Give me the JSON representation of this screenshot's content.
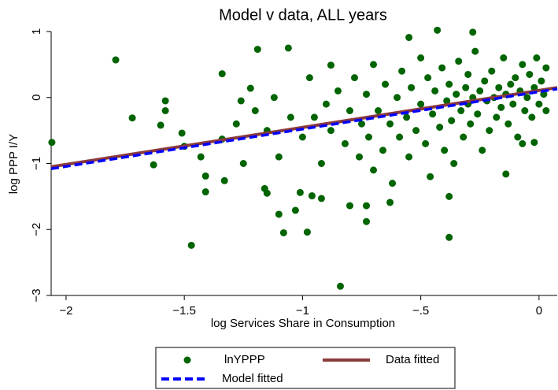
{
  "chart_data": {
    "type": "scatter",
    "title": "Model v data, ALL years",
    "x_label": "log Services Share in Consumption",
    "y_label": "log PPP I/Y",
    "xlim": [
      -2.063,
      0.077
    ],
    "ylim": [
      -3,
      1
    ],
    "xticks": [
      {
        "value": -2,
        "label": "−2"
      },
      {
        "value": -1.5,
        "label": "−1.5"
      },
      {
        "value": -1,
        "label": "−1"
      },
      {
        "value": -0.5,
        "label": "−.5"
      },
      0
    ],
    "yticks": [
      {
        "value": -3,
        "label": "−3"
      },
      {
        "value": -2,
        "label": "−2"
      },
      {
        "value": -1,
        "label": "−1"
      },
      0,
      1
    ],
    "series": [
      {
        "name": "lnYPPP",
        "type": "scatter",
        "color": "#006400",
        "x": [
          -2.06,
          -1.79,
          -1.72,
          -1.6,
          -1.58,
          -1.58,
          -1.63,
          -1.51,
          -1.5,
          -1.47,
          -1.43,
          -1.41,
          -1.41,
          -1.34,
          -1.33,
          -1.34,
          -1.19,
          -1.26,
          -1.22,
          -1.16,
          -1.15,
          -1.1,
          -1.08,
          -1.06,
          -1.03,
          -1.01,
          -0.98,
          -0.96,
          -0.92,
          -0.84,
          -0.8,
          -0.73,
          -0.73,
          -0.63,
          -0.55,
          -0.43,
          -0.28,
          -0.38,
          -0.38,
          -0.14,
          -0.02,
          -0.07,
          -0.88,
          -0.95,
          -0.9,
          -0.88,
          -0.85,
          -0.82,
          -0.8,
          -0.78,
          -0.76,
          -0.75,
          -0.73,
          -0.72,
          -0.7,
          -0.7,
          -0.68,
          -0.66,
          -0.65,
          -0.63,
          -0.62,
          -0.6,
          -0.59,
          -0.58,
          -0.56,
          -0.55,
          -0.54,
          -0.52,
          -0.5,
          -0.5,
          -0.48,
          -0.47,
          -0.46,
          -0.45,
          -0.44,
          -0.42,
          -0.41,
          -0.4,
          -0.39,
          -0.38,
          -0.37,
          -0.36,
          -0.35,
          -0.34,
          -0.33,
          -0.32,
          -0.31,
          -0.3,
          -0.3,
          -0.29,
          -0.28,
          -0.27,
          -0.26,
          -0.25,
          -0.24,
          -0.23,
          -0.22,
          -0.21,
          -0.2,
          -0.19,
          -0.18,
          -0.17,
          -0.16,
          -0.15,
          -0.14,
          -0.13,
          -0.12,
          -0.11,
          -0.1,
          -0.09,
          -0.08,
          -0.07,
          -0.06,
          -0.05,
          -0.04,
          -0.03,
          -0.02,
          -0.01,
          0,
          0.01,
          0.02,
          0.03,
          0.03,
          -1,
          -1.05,
          -1.1,
          -1.12,
          -1.15,
          -1.2,
          -1.25,
          -1.28,
          -0.97,
          -0.92
        ],
        "values": [
          -0.68,
          0.57,
          -0.31,
          -0.42,
          -0.05,
          -0.2,
          -1.02,
          -0.54,
          -0.74,
          -2.24,
          -0.9,
          -1.19,
          -1.43,
          0.36,
          -1.26,
          -0.63,
          0.73,
          -0.05,
          0.14,
          -1.38,
          -1.45,
          -1.77,
          -2.05,
          0.75,
          -1.71,
          -1.44,
          -2.04,
          -1.49,
          -1.53,
          -2.86,
          -1.64,
          -1.64,
          -1.88,
          -1.59,
          0.91,
          1.02,
          0.99,
          -2.12,
          -1.5,
          -1.16,
          -0.68,
          -0.7,
          0.49,
          -0.3,
          -0.1,
          -0.5,
          0.1,
          -0.7,
          -0.2,
          0.3,
          -0.9,
          -0.4,
          0.05,
          -0.6,
          -1.1,
          0.5,
          -0.2,
          -0.8,
          0.2,
          -0.4,
          -1.3,
          0,
          -0.6,
          0.4,
          -0.3,
          -0.9,
          0.15,
          -0.5,
          0.6,
          -0.1,
          -0.7,
          0.3,
          -1.2,
          -0.25,
          0.1,
          -0.45,
          0.45,
          -0.8,
          -0.05,
          0.2,
          -0.35,
          -1,
          0.05,
          0.55,
          -0.2,
          -0.6,
          0.15,
          -0.1,
          0.35,
          -0.4,
          0,
          0.7,
          -0.25,
          0.1,
          -0.8,
          0.25,
          -0.05,
          -0.5,
          0.4,
          0,
          -0.3,
          0.15,
          -0.15,
          0.6,
          0.05,
          -0.4,
          0.2,
          -0.1,
          0.3,
          -0.6,
          0.1,
          0.5,
          -0.2,
          0,
          0.35,
          -0.3,
          0.15,
          0.6,
          -0.1,
          0.25,
          0.05,
          -0.2,
          0.45,
          -0.6,
          -0.3,
          -0.9,
          0,
          -0.5,
          -0.2,
          -1,
          -0.4,
          0.3,
          -1
        ]
      },
      {
        "name": "Data fitted",
        "type": "line",
        "color": "#8b3a3a",
        "x": [
          -2.063,
          0.077
        ],
        "values": [
          -1.05,
          0.15
        ]
      },
      {
        "name": "Model fitted",
        "type": "line",
        "color": "#0000ff",
        "dashed": true,
        "x": [
          -2.063,
          0.077
        ],
        "values": [
          -1.08,
          0.13
        ]
      }
    ]
  }
}
